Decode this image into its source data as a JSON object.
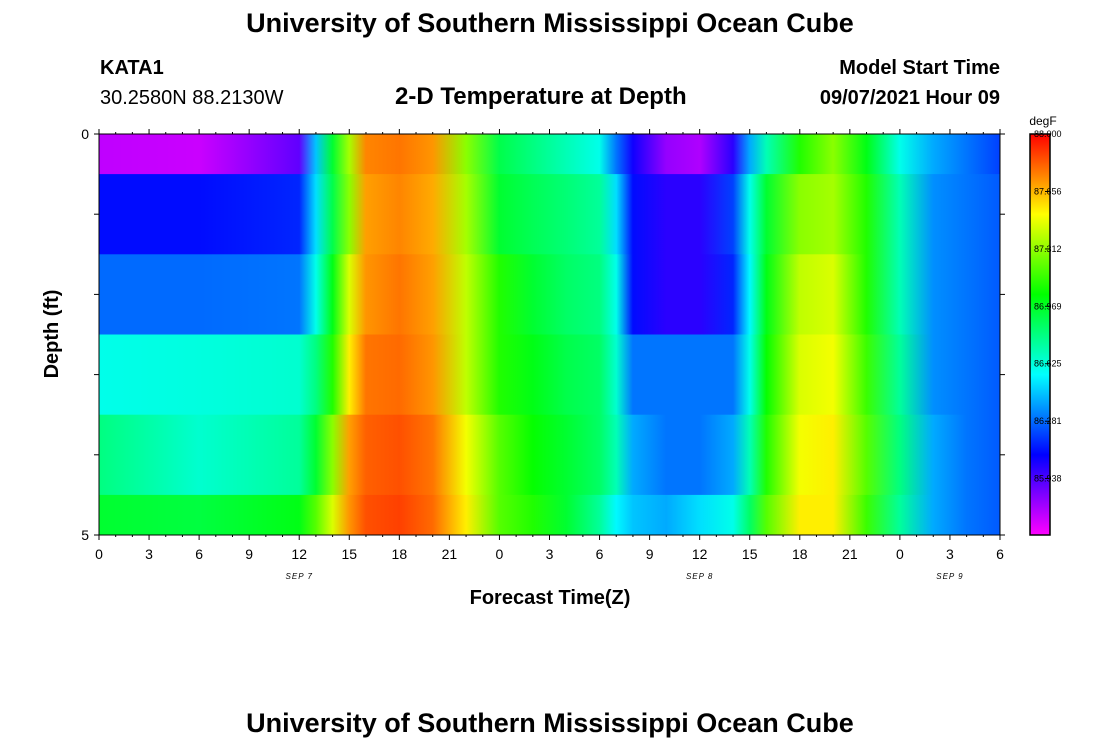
{
  "header": {
    "title": "University of Southern Mississippi Ocean Cube",
    "station_id": "KATA1",
    "coords": "30.2580N  88.2130W",
    "chart_title": "2-D Temperature at Depth",
    "model_start_label": "Model Start Time",
    "model_start_value": "09/07/2021 Hour 09"
  },
  "footer": {
    "title": "University of Southern Mississippi Ocean Cube"
  },
  "chart_data": {
    "type": "heatmap",
    "title": "2-D Temperature at Depth",
    "xlabel": "Forecast Time(Z)",
    "ylabel": "Depth (ft)",
    "units": "degF",
    "x_tick_labels": [
      "0",
      "3",
      "6",
      "9",
      "12",
      "15",
      "18",
      "21",
      "0",
      "3",
      "6",
      "9",
      "12",
      "15",
      "18",
      "21",
      "0",
      "3",
      "6"
    ],
    "date_labels": [
      {
        "label": "SEP 7",
        "hour": 12
      },
      {
        "label": "SEP 8",
        "hour": 36
      },
      {
        "label": "SEP 9",
        "hour": 51
      }
    ],
    "y_tick_labels": [
      "0",
      "5"
    ],
    "ylim": [
      0,
      5
    ],
    "x_range_hours": [
      0,
      54
    ],
    "colorbar": {
      "min": 85.6,
      "max": 88.0,
      "tick_labels": [
        "88.000",
        "87.656",
        "87.312",
        "86.969",
        "86.625",
        "86.281",
        "85.938"
      ]
    },
    "hours": [
      0,
      6,
      12,
      13,
      14,
      15,
      16,
      18,
      20,
      22,
      24,
      26,
      28,
      30,
      31,
      32,
      34,
      36,
      38,
      39,
      40,
      42,
      44,
      46,
      48,
      50,
      52,
      54
    ],
    "series": [
      {
        "depth": "0.0-0.5",
        "values": [
          85.72,
          85.7,
          85.9,
          86.45,
          86.95,
          87.35,
          87.75,
          87.78,
          87.72,
          87.3,
          86.9,
          86.8,
          86.7,
          86.6,
          86.3,
          86.05,
          85.8,
          85.75,
          86.0,
          86.4,
          86.7,
          87.1,
          87.3,
          87.0,
          86.6,
          86.4,
          86.3,
          86.2
        ]
      },
      {
        "depth": "0.5-1.5",
        "values": [
          86.1,
          86.1,
          86.15,
          86.5,
          86.9,
          87.3,
          87.7,
          87.75,
          87.68,
          87.35,
          86.95,
          86.88,
          86.82,
          86.75,
          86.5,
          86.1,
          86.0,
          86.0,
          86.2,
          86.6,
          86.95,
          87.3,
          87.35,
          87.1,
          86.7,
          86.35,
          86.3,
          86.25
        ]
      },
      {
        "depth": "1.5-2.5",
        "values": [
          86.28,
          86.28,
          86.3,
          86.6,
          87.0,
          87.45,
          87.72,
          87.78,
          87.7,
          87.4,
          87.1,
          86.95,
          86.85,
          86.8,
          86.6,
          86.1,
          86.0,
          86.0,
          86.15,
          86.55,
          87.0,
          87.4,
          87.45,
          87.1,
          86.7,
          86.35,
          86.3,
          86.25
        ]
      },
      {
        "depth": "2.5-3.5",
        "values": [
          86.6,
          86.62,
          86.65,
          86.8,
          87.1,
          87.55,
          87.78,
          87.8,
          87.72,
          87.4,
          87.1,
          87.0,
          86.9,
          86.85,
          86.65,
          86.3,
          86.3,
          86.3,
          86.3,
          86.6,
          87.05,
          87.45,
          87.5,
          87.15,
          86.75,
          86.35,
          86.3,
          86.25
        ]
      },
      {
        "depth": "3.5-4.5",
        "values": [
          86.8,
          86.65,
          86.75,
          86.95,
          87.3,
          87.7,
          87.82,
          87.85,
          87.78,
          87.5,
          87.2,
          87.05,
          86.95,
          86.85,
          86.7,
          86.4,
          86.3,
          86.3,
          86.4,
          86.7,
          87.1,
          87.5,
          87.55,
          87.2,
          86.8,
          86.4,
          86.3,
          86.25
        ]
      },
      {
        "depth": "4.5-5.0",
        "values": [
          86.95,
          86.92,
          87.0,
          87.2,
          87.45,
          87.72,
          87.85,
          87.88,
          87.8,
          87.55,
          87.2,
          87.1,
          86.95,
          86.75,
          86.55,
          86.45,
          86.4,
          86.5,
          86.6,
          86.85,
          87.2,
          87.55,
          87.55,
          87.15,
          86.75,
          86.4,
          86.3,
          86.25
        ]
      }
    ]
  }
}
